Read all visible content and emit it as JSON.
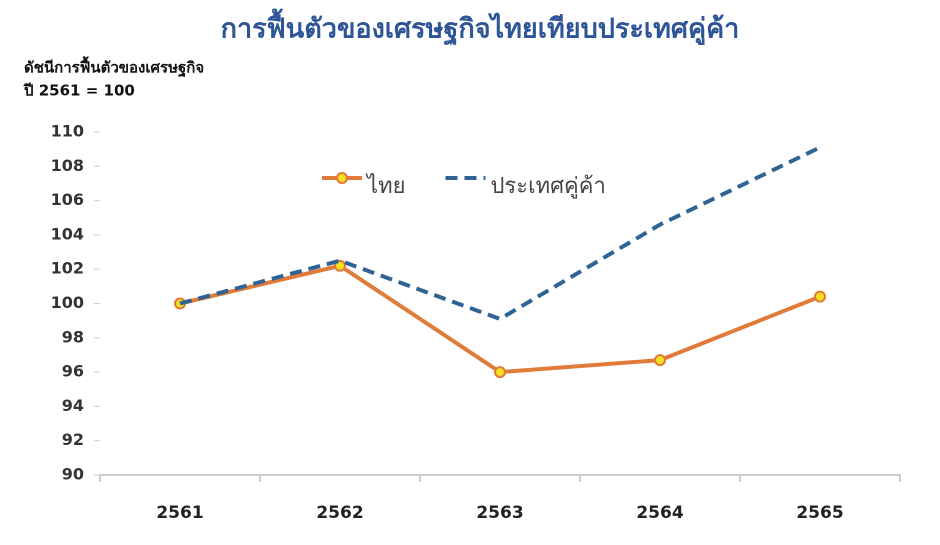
{
  "chart_data": {
    "type": "line",
    "title": "การฟื้นตัวของเศรษฐกิจไทยเทียบประเทศคู่ค้า",
    "y_label": "ดัชนีการฟื้นตัวของเศรษฐกิจ",
    "y_note": "ปี 2561 = 100",
    "categories": [
      "2561",
      "2562",
      "2563",
      "2564",
      "2565"
    ],
    "series": [
      {
        "name": "ไทย",
        "color": "#e07b39",
        "marker_color": "#f5e020",
        "dashed": false,
        "values": [
          100,
          102.2,
          96.0,
          96.7,
          100.4
        ]
      },
      {
        "name": "ประเทศคู่ค้า",
        "color": "#2e6394",
        "dashed": true,
        "values": [
          100,
          102.5,
          99.1,
          104.6,
          109.1
        ]
      }
    ],
    "ylim": [
      90,
      110
    ],
    "yticks": [
      90,
      92,
      94,
      96,
      98,
      100,
      102,
      104,
      106,
      108,
      110
    ],
    "grid": false,
    "legend": "top"
  }
}
